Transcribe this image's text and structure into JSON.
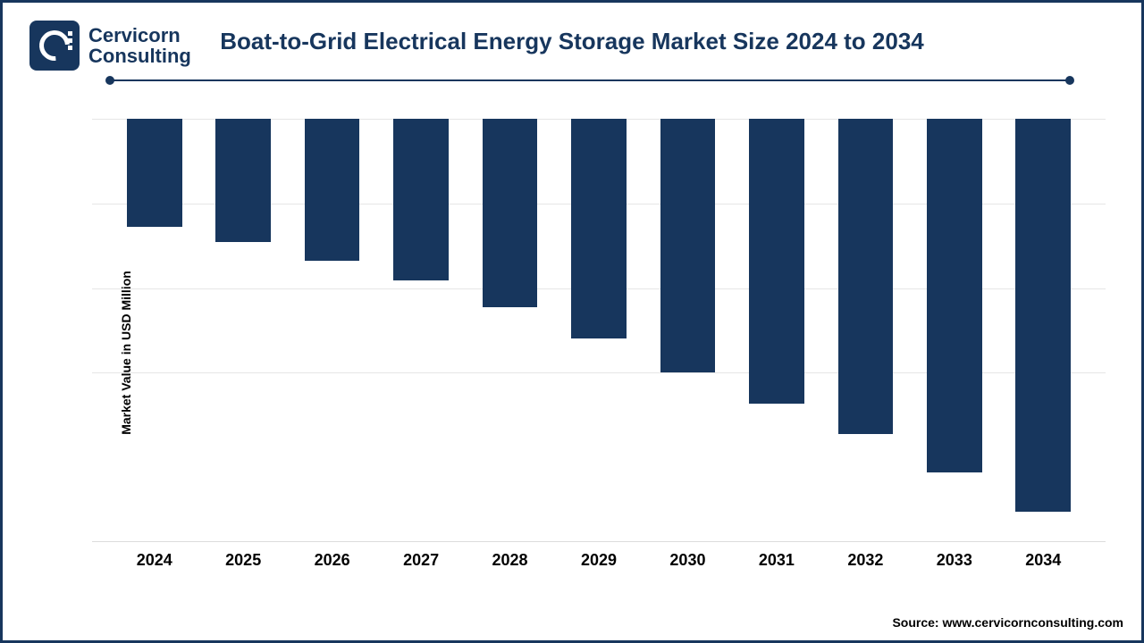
{
  "logo": {
    "line1": "Cervicorn",
    "line2": "Consulting",
    "mark_bg": "#17365d"
  },
  "title": "Boat-to-Grid Electrical Energy Storage Market Size 2024 to 2034",
  "chart": {
    "type": "bar",
    "ylabel": "Market Value in USD Million",
    "categories": [
      "2024",
      "2025",
      "2026",
      "2027",
      "2028",
      "2029",
      "2030",
      "2031",
      "2032",
      "2033",
      "2034"
    ],
    "values": [
      28,
      32,
      37,
      42,
      49,
      57,
      66,
      74,
      82,
      92,
      102
    ],
    "value_unit": "relative",
    "ylim": [
      0,
      110
    ],
    "bar_color": "#17365d",
    "bar_width": 0.62,
    "background_color": "#ffffff",
    "grid_color": "#e6e6e6",
    "grid_lines_from_top_pct": [
      0,
      20,
      40,
      60
    ],
    "title_fontsize": 26,
    "title_color": "#17365d",
    "xlabel_fontsize": 18,
    "xlabel_fontweight": "700",
    "ylabel_fontsize": 14,
    "ylabel_fontweight": "700"
  },
  "source": "Source: www.cervicornconsulting.com",
  "colors": {
    "frame_border": "#17365d",
    "divider": "#17365d"
  }
}
